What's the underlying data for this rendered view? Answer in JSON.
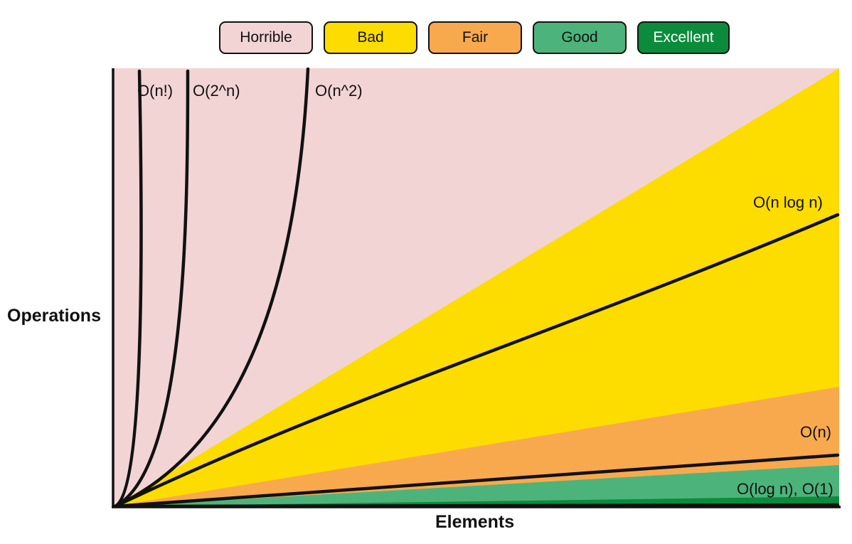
{
  "chart_data": {
    "type": "area",
    "title": "",
    "xlabel": "Elements",
    "ylabel": "Operations",
    "legend_position": "top-center",
    "grid": false,
    "legend": [
      {
        "name": "Horrible",
        "color": "#f2d4d4"
      },
      {
        "name": "Bad",
        "color": "#fddc00"
      },
      {
        "name": "Fair",
        "color": "#f8a94e"
      },
      {
        "name": "Good",
        "color": "#4cb47a"
      },
      {
        "name": "Excellent",
        "color": "#0b8c3c"
      }
    ],
    "series": [
      {
        "name": "O(n!)",
        "label": "O(n!)"
      },
      {
        "name": "O(2^n)",
        "label": "O(2^n)"
      },
      {
        "name": "O(n^2)",
        "label": "O(n^2)"
      },
      {
        "name": "O(n log n)",
        "label": "O(n log n)"
      },
      {
        "name": "O(n)",
        "label": "O(n)"
      },
      {
        "name": "O(log n), O(1)",
        "label": "O(log n), O(1)"
      }
    ],
    "colors": {
      "horrible": "#f2d4d4",
      "bad": "#fddc00",
      "fair": "#f8a94e",
      "good": "#4cb47a",
      "excellent": "#0b8c3c",
      "curve": "#111111"
    }
  }
}
